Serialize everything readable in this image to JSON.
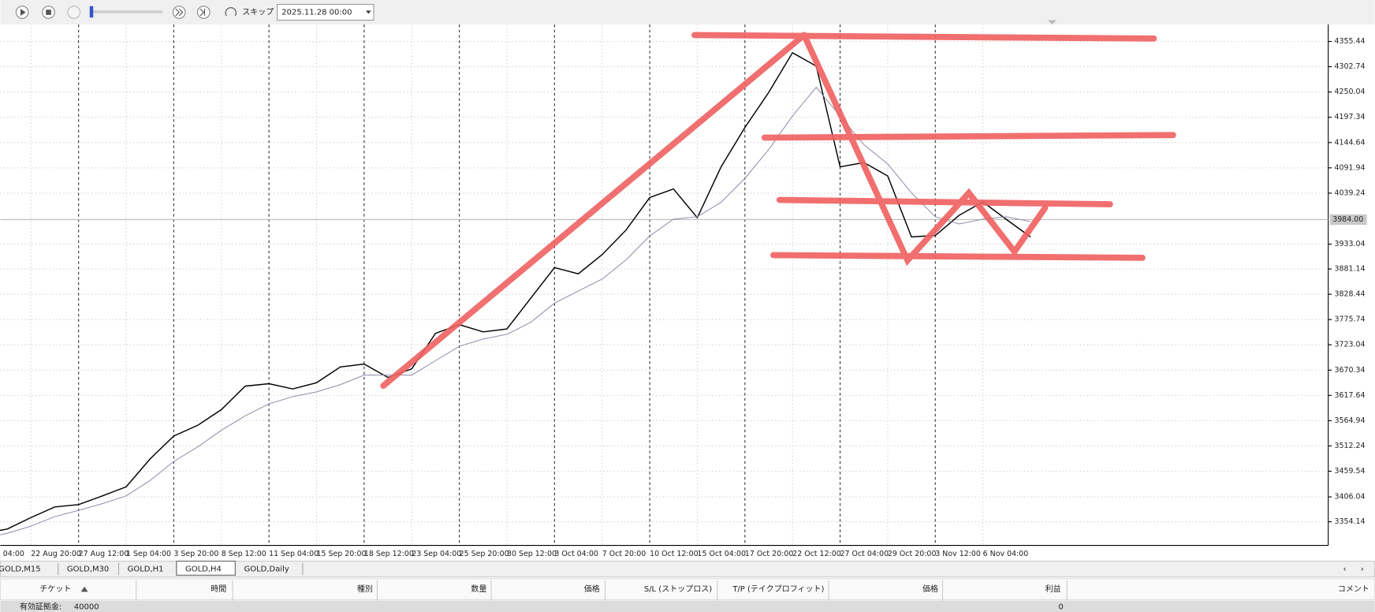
{
  "toolbar": {
    "skip_label": "スキップ",
    "date": "2025.11.28 00:00"
  },
  "chart_data": {
    "type": "line",
    "categories": [
      "04:00",
      null,
      "22 Aug 20:00",
      null,
      "27 Aug 12:00",
      null,
      "1 Sep 04:00",
      null,
      "3 Sep 20:00",
      null,
      "8 Sep 12:00",
      null,
      "11 Sep 04:00",
      null,
      "15 Sep 20:00",
      null,
      "18 Sep 12:00",
      null,
      "23 Sep 04:00",
      null,
      "25 Sep 20:00",
      null,
      "30 Sep 12:00",
      null,
      "3 Oct 04:00",
      null,
      "7 Oct 20:00",
      null,
      "10 Oct 12:00",
      null,
      "15 Oct 04:00",
      null,
      "17 Oct 20:00",
      null,
      "22 Oct 12:00",
      null,
      "27 Oct 04:00",
      null,
      "29 Oct 20:00",
      null,
      "3 Nov 12:00",
      null,
      "6 Nov 04:00",
      null,
      null
    ],
    "series": [
      {
        "color": "#000000",
        "values": [
          3330,
          3339,
          3363,
          3385,
          3390,
          3408,
          3427,
          3485,
          3533,
          3555,
          3588,
          3637,
          3642,
          3631,
          3644,
          3677,
          3683,
          3655,
          3673,
          3747,
          3765,
          3750,
          3756,
          3820,
          3884,
          3871,
          3911,
          3962,
          4030,
          4048,
          3988,
          4094,
          4176,
          4249,
          4332,
          4304,
          4094,
          4103,
          4075,
          3948,
          3951,
          3993,
          4021,
          3984,
          3948
        ]
      },
      {
        "color": "#8c8ca8",
        "values": [
          3320,
          3330,
          3345,
          3365,
          3378,
          3392,
          3408,
          3440,
          3480,
          3510,
          3545,
          3575,
          3600,
          3615,
          3625,
          3640,
          3660,
          3660,
          3660,
          3690,
          3720,
          3735,
          3745,
          3770,
          3810,
          3835,
          3860,
          3900,
          3950,
          3985,
          3990,
          4020,
          4070,
          4130,
          4200,
          4260,
          4200,
          4140,
          4100,
          4040,
          3990,
          3975,
          3985,
          3990,
          3980
        ]
      }
    ],
    "ylim": [
      3305,
      4387
    ],
    "yticks": [
      4355.44,
      4302.74,
      4250.04,
      4197.34,
      4144.64,
      4091.94,
      4039.24,
      3933.04,
      3881.14,
      3828.44,
      3775.74,
      3723.04,
      3670.34,
      3617.64,
      3564.94,
      3512.24,
      3459.54,
      3406.04,
      3354.14
    ],
    "current_price": {
      "value": 3984,
      "label": "3984.00"
    },
    "grid": true
  },
  "tabs": [
    "GOLD,M15",
    "GOLD,M30",
    "GOLD,H1",
    "GOLD,H4",
    "GOLD,Daily"
  ],
  "terminal": {
    "columns": [
      "チケット",
      "時間",
      "種別",
      "数量",
      "価格",
      "S/L (ストップロス)",
      "T/P (テイクプロフィット)",
      "価格",
      "利益",
      "コメント"
    ],
    "balance_label": "有効証拠金:",
    "balance": 40000,
    "profit": 0
  }
}
